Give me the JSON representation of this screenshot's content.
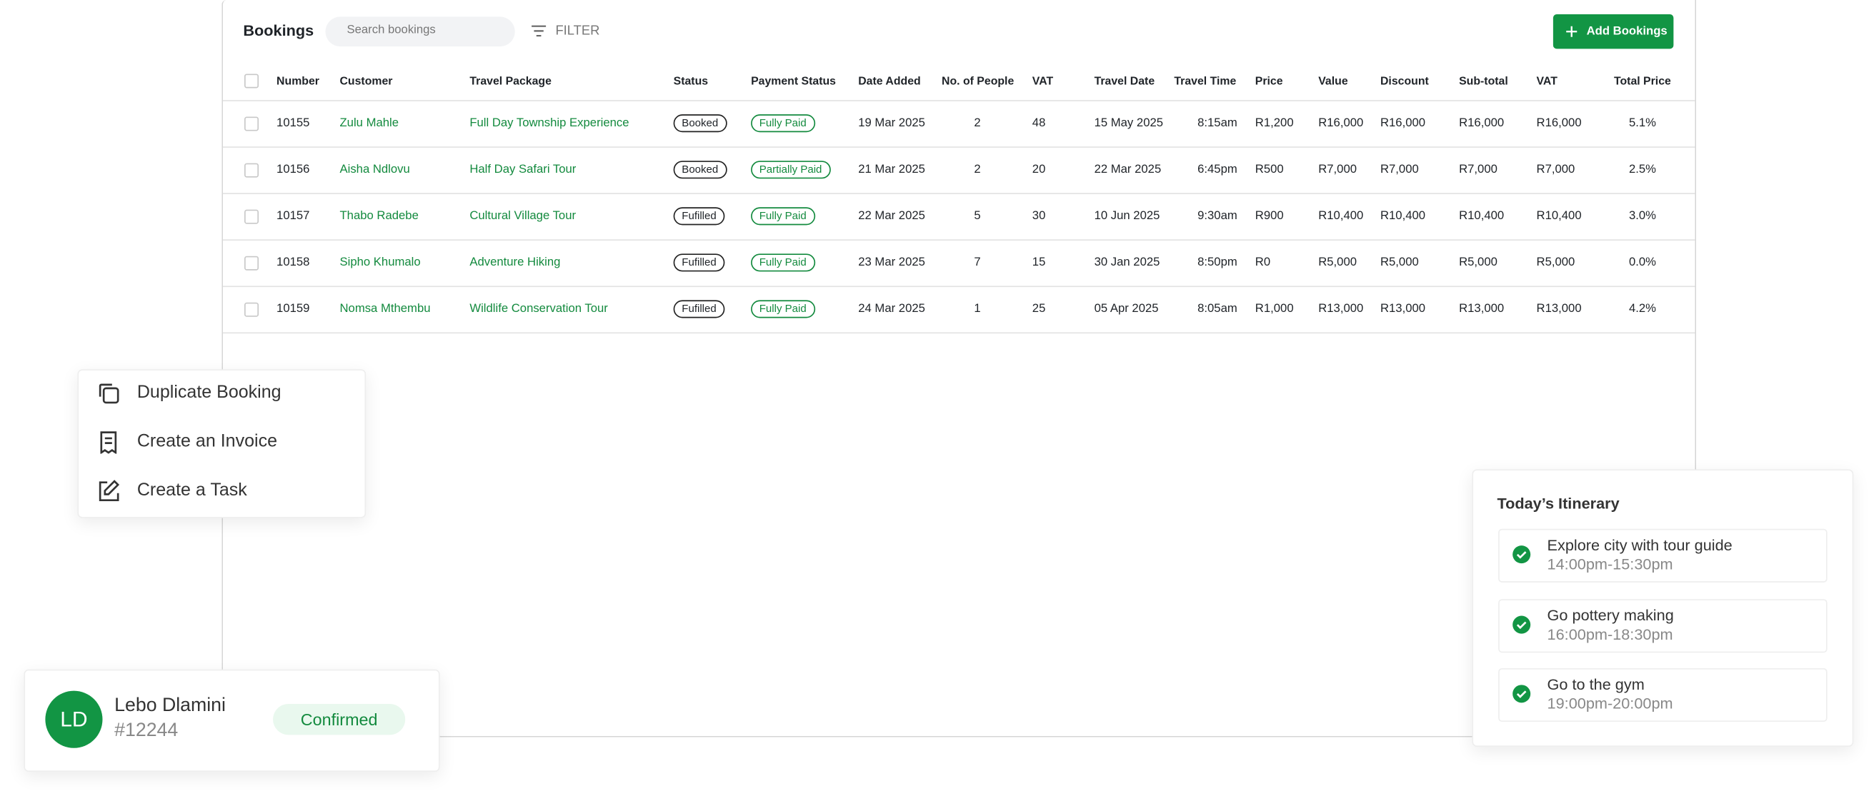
{
  "header": {
    "title": "Bookings",
    "search_placeholder": "Search bookings",
    "filter": "FILTER",
    "add_button": "Add Bookings"
  },
  "table": {
    "columns": [
      "Number",
      "Customer",
      "Travel Package",
      "Status",
      "Payment Status",
      "Date Added",
      "No. of People",
      "VAT",
      "Travel Date",
      "Travel Time",
      "Price",
      "Value",
      "Discount",
      "Sub-total",
      "VAT",
      "Total Price"
    ],
    "rows": [
      [
        "10155",
        "Zulu Mahle",
        "Full Day Township Experience",
        "Booked",
        "Fully Paid",
        "19 Mar 2025",
        "2",
        "48",
        "15 May 2025",
        "8:15am",
        "R1,200",
        "R16,000",
        "R16,000",
        "R16,000",
        "R16,000",
        "5.1%"
      ],
      [
        "10156",
        "Aisha Ndlovu",
        "Half Day Safari Tour",
        "Booked",
        "Partially Paid",
        "21 Mar 2025",
        "2",
        "20",
        "22 Mar 2025",
        "6:45pm",
        "R500",
        "R7,000",
        "R7,000",
        "R7,000",
        "R7,000",
        "2.5%"
      ],
      [
        "10157",
        "Thabo Radebe",
        "Cultural Village Tour",
        "Fufilled",
        "Fully Paid",
        "22 Mar 2025",
        "5",
        "30",
        "10 Jun 2025",
        "9:30am",
        "R900",
        "R10,400",
        "R10,400",
        "R10,400",
        "R10,400",
        "3.0%"
      ],
      [
        "10158",
        "Sipho Khumalo",
        "Adventure Hiking",
        "Fufilled",
        "Fully Paid",
        "23 Mar 2025",
        "7",
        "15",
        "30 Jan 2025",
        "8:50pm",
        "R0",
        "R5,000",
        "R5,000",
        "R5,000",
        "R5,000",
        "0.0%"
      ],
      [
        "10159",
        "Nomsa Mthembu",
        "Wildlife Conservation Tour",
        "Fufilled",
        "Fully Paid",
        "24 Mar 2025",
        "1",
        "25",
        "05 Apr 2025",
        "8:05am",
        "R1,000",
        "R13,000",
        "R13,000",
        "R13,000",
        "R13,000",
        "4.2%"
      ]
    ]
  },
  "menu": {
    "items": [
      "Duplicate Booking",
      "Create an Invoice",
      "Create a Task"
    ]
  },
  "profile": {
    "initials": "LD",
    "name": "Lebo Dlamini",
    "id": "#12244",
    "status": "Confirmed"
  },
  "itinerary": {
    "title": "Today’s Itinerary",
    "items": [
      {
        "title": "Explore city with tour guide",
        "time": "14:00pm-15:30pm"
      },
      {
        "title": "Go pottery making",
        "time": "16:00pm-18:30pm"
      },
      {
        "title": "Go to the gym",
        "time": "19:00pm-20:00pm"
      }
    ]
  }
}
